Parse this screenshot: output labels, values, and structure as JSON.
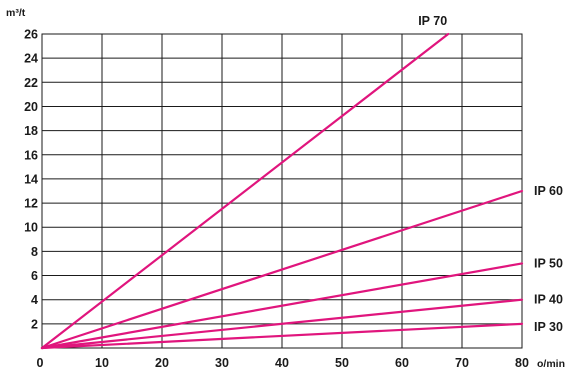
{
  "chart_data": {
    "type": "line",
    "xlabel": "o/min",
    "ylabel": "m³/t",
    "xlim": [
      0,
      80
    ],
    "ylim": [
      0,
      26
    ],
    "xticks": [
      0,
      10,
      20,
      30,
      40,
      50,
      60,
      70,
      80
    ],
    "yticks": [
      2,
      4,
      6,
      8,
      10,
      12,
      14,
      16,
      18,
      20,
      22,
      24,
      26
    ],
    "grid": true,
    "line_color": "#e0157d",
    "series": [
      {
        "name": "IP 70",
        "x": [
          0,
          67.7
        ],
        "y": [
          0,
          26
        ]
      },
      {
        "name": "IP 60",
        "x": [
          0,
          80
        ],
        "y": [
          0,
          13
        ]
      },
      {
        "name": "IP 50",
        "x": [
          0,
          80
        ],
        "y": [
          0,
          7
        ]
      },
      {
        "name": "IP 40",
        "x": [
          0,
          80
        ],
        "y": [
          0,
          4
        ]
      },
      {
        "name": "IP 30",
        "x": [
          0,
          80
        ],
        "y": [
          0,
          2
        ]
      }
    ]
  }
}
